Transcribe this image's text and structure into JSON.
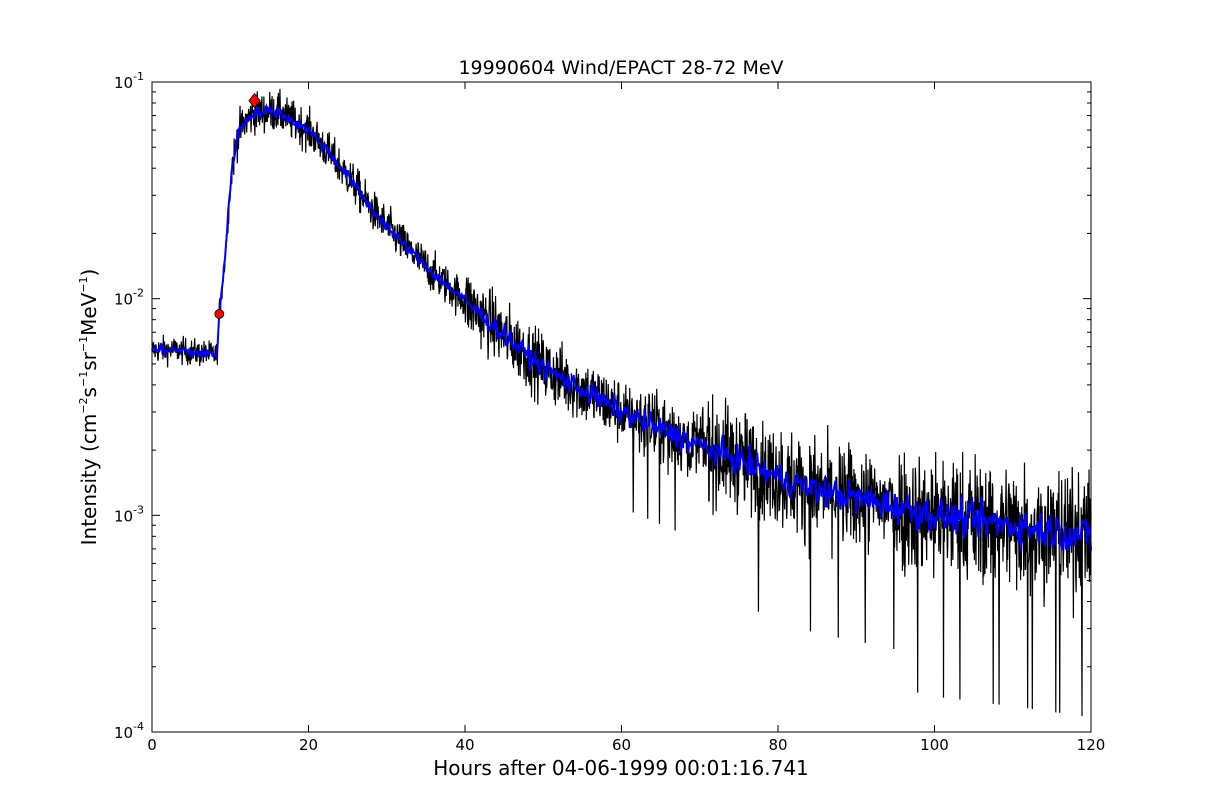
{
  "chart_data": {
    "type": "line",
    "title": "19990604 Wind/EPACT 28-72 MeV",
    "xlabel": "Hours after 04-06-1999 00:01:16.741",
    "ylabel": {
      "prefix": "Intensity (cm",
      "exp1": "−2",
      "mid1": "s",
      "exp2": "−1",
      "mid2": "sr",
      "exp3": "−1",
      "mid3": "MeV",
      "exp4": "−1",
      "suffix": ")"
    },
    "xlim": [
      0,
      120
    ],
    "ylim": [
      0.0001,
      0.1
    ],
    "yscale": "log",
    "grid": false,
    "xticks": [
      0,
      20,
      40,
      60,
      80,
      100,
      120
    ],
    "yticks": [
      {
        "value": 0.0001,
        "base": "10",
        "exp": "-4"
      },
      {
        "value": 0.001,
        "base": "10",
        "exp": "-3"
      },
      {
        "value": 0.01,
        "base": "10",
        "exp": "-2"
      },
      {
        "value": 0.1,
        "base": "10",
        "exp": "-1"
      }
    ],
    "series": [
      {
        "role": "raw intensity",
        "color": "#000000",
        "profile_x": [
          0,
          3,
          6,
          8.3,
          8.6,
          9.3,
          10.2,
          11.0,
          12.0,
          13.0,
          15.0,
          16.0,
          18.0,
          20.0,
          22.0,
          25.0,
          28.0,
          32.0,
          36.0,
          40.0,
          45.0,
          50.0,
          55.0,
          60.0,
          65.0,
          70.0,
          75.0,
          80.0,
          85.0,
          90.0,
          95.0,
          100.0,
          105.0,
          110.0,
          115.0,
          120.0
        ],
        "profile_y": [
          0.0058,
          0.0058,
          0.0056,
          0.0055,
          0.0085,
          0.015,
          0.04,
          0.058,
          0.066,
          0.072,
          0.073,
          0.073,
          0.066,
          0.06,
          0.05,
          0.037,
          0.026,
          0.018,
          0.013,
          0.0098,
          0.0068,
          0.0048,
          0.0038,
          0.003,
          0.0025,
          0.0021,
          0.0018,
          0.0015,
          0.0013,
          0.0012,
          0.0011,
          0.001,
          0.00095,
          0.0009,
          0.00085,
          0.0008
        ],
        "noise_dex": [
          0.08,
          0.12,
          0.2,
          0.3,
          0.38
        ],
        "noise_breaks_x": [
          10,
          40,
          70,
          95,
          120
        ]
      },
      {
        "role": "smoothed intensity",
        "color": "#0000ff",
        "profile_x": [
          0,
          3,
          6,
          8.3,
          8.6,
          9.3,
          10.2,
          11.0,
          12.0,
          13.0,
          15.0,
          16.0,
          18.0,
          20.0,
          22.0,
          25.0,
          28.0,
          32.0,
          36.0,
          40.0,
          45.0,
          50.0,
          55.0,
          60.0,
          65.0,
          70.0,
          75.0,
          80.0,
          85.0,
          90.0,
          95.0,
          100.0,
          105.0,
          110.0,
          115.0,
          120.0
        ],
        "profile_y": [
          0.0058,
          0.0058,
          0.0056,
          0.0055,
          0.0085,
          0.015,
          0.04,
          0.058,
          0.066,
          0.072,
          0.073,
          0.073,
          0.066,
          0.06,
          0.05,
          0.037,
          0.026,
          0.018,
          0.013,
          0.0098,
          0.0068,
          0.0048,
          0.0038,
          0.003,
          0.0025,
          0.0021,
          0.0018,
          0.0015,
          0.0013,
          0.0012,
          0.0011,
          0.001,
          0.00095,
          0.0009,
          0.00085,
          0.0008
        ]
      }
    ],
    "markers": [
      {
        "name": "onset",
        "shape": "circle",
        "x": 8.6,
        "y": 0.0085,
        "color": "#ff0000"
      },
      {
        "name": "peak",
        "shape": "diamond",
        "x": 13.1,
        "y": 0.082,
        "color": "#ff0000"
      }
    ]
  }
}
